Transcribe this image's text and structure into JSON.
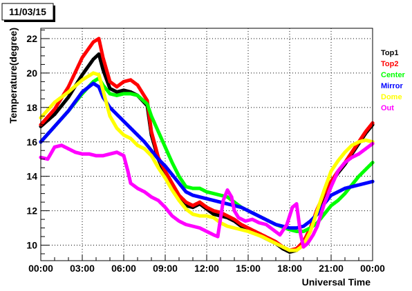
{
  "chart_data": {
    "type": "scatter",
    "title": "11/03/15",
    "xlabel": "Universal Time",
    "ylabel": "Temperature(degree)",
    "x_ticks": [
      "00:00",
      "03:00",
      "06:00",
      "09:00",
      "12:00",
      "15:00",
      "18:00",
      "21:00",
      "00:00"
    ],
    "y_ticks": [
      10,
      12,
      14,
      16,
      18,
      20,
      22
    ],
    "xlim": [
      0,
      24
    ],
    "ylim": [
      9.1,
      22.6
    ],
    "grid": true,
    "legend_position": "right",
    "series": [
      {
        "name": "Top1",
        "color": "#000000",
        "points": [
          [
            0,
            16.9
          ],
          [
            1,
            17.6
          ],
          [
            2,
            18.6
          ],
          [
            3,
            19.9
          ],
          [
            3.8,
            20.8
          ],
          [
            4.2,
            21.1
          ],
          [
            4.5,
            20.2
          ],
          [
            5,
            19.1
          ],
          [
            5.5,
            18.9
          ],
          [
            6,
            19.0
          ],
          [
            6.5,
            18.9
          ],
          [
            7,
            18.7
          ],
          [
            7.7,
            18.1
          ],
          [
            8,
            16.4
          ],
          [
            8.5,
            15.0
          ],
          [
            9,
            14.1
          ],
          [
            9.5,
            13.3
          ],
          [
            10,
            12.7
          ],
          [
            10.5,
            12.3
          ],
          [
            11,
            12.2
          ],
          [
            11.5,
            12.4
          ],
          [
            12,
            12.1
          ],
          [
            12.5,
            11.8
          ],
          [
            13,
            11.7
          ],
          [
            13.5,
            11.6
          ],
          [
            14,
            11.4
          ],
          [
            14.5,
            11.1
          ],
          [
            15,
            10.9
          ],
          [
            16,
            10.5
          ],
          [
            17,
            10.1
          ],
          [
            17.5,
            9.8
          ],
          [
            18,
            9.6
          ],
          [
            18.5,
            9.7
          ],
          [
            19,
            10.1
          ],
          [
            19.5,
            10.9
          ],
          [
            20,
            12.0
          ],
          [
            20.5,
            12.9
          ],
          [
            21,
            13.6
          ],
          [
            21.5,
            14.2
          ],
          [
            22,
            14.7
          ],
          [
            22.5,
            15.3
          ],
          [
            23,
            15.9
          ],
          [
            23.5,
            16.5
          ],
          [
            24,
            17.0
          ]
        ]
      },
      {
        "name": "Top2",
        "color": "#ff0000",
        "points": [
          [
            0,
            17.0
          ],
          [
            1,
            17.9
          ],
          [
            2,
            19.2
          ],
          [
            3,
            20.9
          ],
          [
            3.8,
            21.8
          ],
          [
            4.2,
            22.0
          ],
          [
            4.5,
            20.9
          ],
          [
            5,
            19.5
          ],
          [
            5.5,
            19.2
          ],
          [
            6,
            19.5
          ],
          [
            6.5,
            19.6
          ],
          [
            7,
            19.3
          ],
          [
            7.7,
            18.4
          ],
          [
            8,
            16.6
          ],
          [
            8.5,
            15.1
          ],
          [
            9,
            14.3
          ],
          [
            9.5,
            13.6
          ],
          [
            10,
            12.9
          ],
          [
            10.5,
            12.5
          ],
          [
            11,
            12.3
          ],
          [
            11.5,
            12.5
          ],
          [
            12,
            12.2
          ],
          [
            12.5,
            12.0
          ],
          [
            13,
            11.9
          ],
          [
            13.5,
            11.7
          ],
          [
            14,
            11.5
          ],
          [
            14.5,
            11.2
          ],
          [
            15,
            11.0
          ],
          [
            16,
            10.6
          ],
          [
            17,
            10.2
          ],
          [
            17.5,
            9.9
          ],
          [
            18,
            9.7
          ],
          [
            18.5,
            9.8
          ],
          [
            19,
            10.2
          ],
          [
            19.5,
            11.0
          ],
          [
            20,
            12.1
          ],
          [
            20.5,
            13.0
          ],
          [
            21,
            13.7
          ],
          [
            21.5,
            14.3
          ],
          [
            22,
            14.8
          ],
          [
            22.5,
            15.4
          ],
          [
            23,
            16.0
          ],
          [
            23.5,
            16.6
          ],
          [
            24,
            17.1
          ]
        ]
      },
      {
        "name": "Center",
        "color": "#00ff00",
        "points": [
          [
            0,
            16.0
          ],
          [
            1,
            16.9
          ],
          [
            2,
            17.8
          ],
          [
            3,
            18.8
          ],
          [
            3.8,
            19.5
          ],
          [
            4.2,
            19.7
          ],
          [
            4.5,
            19.3
          ],
          [
            5,
            18.8
          ],
          [
            5.5,
            18.7
          ],
          [
            6,
            18.8
          ],
          [
            6.5,
            18.8
          ],
          [
            7,
            18.7
          ],
          [
            7.7,
            18.2
          ],
          [
            8,
            17.5
          ],
          [
            8.5,
            16.6
          ],
          [
            9,
            15.7
          ],
          [
            9.5,
            14.8
          ],
          [
            10,
            14.0
          ],
          [
            10.5,
            13.4
          ],
          [
            11,
            13.3
          ],
          [
            11.5,
            13.3
          ],
          [
            12,
            13.1
          ],
          [
            12.5,
            13.0
          ],
          [
            13,
            12.9
          ],
          [
            13.5,
            12.8
          ],
          [
            14,
            12.5
          ],
          [
            14.5,
            12.2
          ],
          [
            15,
            12.0
          ],
          [
            16,
            11.6
          ],
          [
            17,
            11.2
          ],
          [
            18,
            10.9
          ],
          [
            18.5,
            10.8
          ],
          [
            19,
            10.8
          ],
          [
            19.5,
            11.0
          ],
          [
            20,
            11.3
          ],
          [
            20.5,
            11.8
          ],
          [
            21,
            12.3
          ],
          [
            21.5,
            12.6
          ],
          [
            22,
            13.0
          ],
          [
            22.5,
            13.5
          ],
          [
            23,
            14.0
          ],
          [
            23.5,
            14.4
          ],
          [
            24,
            14.8
          ]
        ]
      },
      {
        "name": "Mirror",
        "color": "#0000ff",
        "points": [
          [
            0,
            16.0
          ],
          [
            1,
            16.9
          ],
          [
            2,
            17.8
          ],
          [
            3,
            18.9
          ],
          [
            3.8,
            19.4
          ],
          [
            4.2,
            19.2
          ],
          [
            4.5,
            18.6
          ],
          [
            5,
            18.0
          ],
          [
            5.5,
            17.6
          ],
          [
            6,
            17.2
          ],
          [
            6.5,
            16.8
          ],
          [
            7,
            16.4
          ],
          [
            7.5,
            16.0
          ],
          [
            8,
            15.5
          ],
          [
            8.5,
            15.0
          ],
          [
            9,
            14.6
          ],
          [
            9.5,
            14.1
          ],
          [
            10,
            13.6
          ],
          [
            10.5,
            13.1
          ],
          [
            11,
            12.9
          ],
          [
            11.5,
            12.8
          ],
          [
            12,
            12.7
          ],
          [
            12.5,
            12.6
          ],
          [
            13,
            12.5
          ],
          [
            13.5,
            12.4
          ],
          [
            14,
            12.3
          ],
          [
            14.5,
            12.2
          ],
          [
            15,
            12.0
          ],
          [
            15.5,
            11.8
          ],
          [
            16,
            11.6
          ],
          [
            16.5,
            11.4
          ],
          [
            17,
            11.2
          ],
          [
            17.5,
            11.1
          ],
          [
            18,
            11.0
          ],
          [
            18.5,
            11.0
          ],
          [
            19,
            11.1
          ],
          [
            19.5,
            11.4
          ],
          [
            20,
            11.8
          ],
          [
            20.5,
            12.4
          ],
          [
            21,
            12.9
          ],
          [
            21.5,
            13.1
          ],
          [
            22,
            13.3
          ],
          [
            22.5,
            13.4
          ],
          [
            23,
            13.5
          ],
          [
            23.5,
            13.6
          ],
          [
            24,
            13.7
          ]
        ]
      },
      {
        "name": "Dome",
        "color": "#ffff00",
        "points": [
          [
            0,
            17.4
          ],
          [
            1,
            18.3
          ],
          [
            2,
            18.9
          ],
          [
            3,
            19.6
          ],
          [
            3.8,
            20.0
          ],
          [
            4.2,
            19.9
          ],
          [
            4.5,
            19.0
          ],
          [
            5,
            17.5
          ],
          [
            5.5,
            16.8
          ],
          [
            6,
            16.4
          ],
          [
            6.5,
            16.2
          ],
          [
            7,
            15.8
          ],
          [
            7.5,
            15.6
          ],
          [
            8,
            15.2
          ],
          [
            8.5,
            14.5
          ],
          [
            9,
            13.9
          ],
          [
            9.5,
            13.2
          ],
          [
            10,
            12.6
          ],
          [
            10.5,
            12.1
          ],
          [
            11,
            11.8
          ],
          [
            11.5,
            11.7
          ],
          [
            12,
            11.7
          ],
          [
            12.5,
            11.6
          ],
          [
            13,
            11.3
          ],
          [
            13.5,
            11.1
          ],
          [
            14,
            11.0
          ],
          [
            14.5,
            10.9
          ],
          [
            15,
            10.8
          ],
          [
            16,
            10.5
          ],
          [
            17,
            10.1
          ],
          [
            18,
            9.7
          ],
          [
            18.5,
            9.7
          ],
          [
            19,
            10.0
          ],
          [
            19.5,
            10.8
          ],
          [
            20,
            12.0
          ],
          [
            20.5,
            13.2
          ],
          [
            21,
            14.3
          ],
          [
            21.5,
            14.9
          ],
          [
            22,
            15.4
          ],
          [
            22.5,
            15.8
          ],
          [
            23,
            16.0
          ],
          [
            23.5,
            16.1
          ],
          [
            24,
            16.0
          ]
        ]
      },
      {
        "name": "Out",
        "color": "#ff00ff",
        "points": [
          [
            0,
            15.1
          ],
          [
            0.5,
            15.0
          ],
          [
            1,
            15.7
          ],
          [
            1.5,
            15.8
          ],
          [
            2,
            15.6
          ],
          [
            2.5,
            15.4
          ],
          [
            3,
            15.3
          ],
          [
            3.5,
            15.3
          ],
          [
            4,
            15.2
          ],
          [
            4.5,
            15.2
          ],
          [
            5,
            15.3
          ],
          [
            5.5,
            15.4
          ],
          [
            6,
            15.2
          ],
          [
            6.3,
            14.3
          ],
          [
            6.5,
            13.6
          ],
          [
            7,
            13.3
          ],
          [
            7.5,
            13.1
          ],
          [
            8,
            12.8
          ],
          [
            8.5,
            12.6
          ],
          [
            9,
            12.2
          ],
          [
            9.5,
            11.7
          ],
          [
            10,
            11.4
          ],
          [
            10.5,
            11.2
          ],
          [
            11,
            11.1
          ],
          [
            11.5,
            11.0
          ],
          [
            12,
            10.8
          ],
          [
            12.5,
            10.6
          ],
          [
            12.8,
            10.5
          ],
          [
            13.2,
            12.6
          ],
          [
            13.5,
            13.2
          ],
          [
            13.8,
            12.8
          ],
          [
            14,
            12.0
          ],
          [
            14.3,
            11.6
          ],
          [
            14.8,
            11.4
          ],
          [
            15.3,
            11.5
          ],
          [
            15.8,
            11.3
          ],
          [
            16.3,
            11.2
          ],
          [
            16.8,
            10.9
          ],
          [
            17.3,
            10.6
          ],
          [
            17.8,
            11.2
          ],
          [
            18.2,
            12.2
          ],
          [
            18.5,
            12.4
          ],
          [
            18.8,
            10.6
          ],
          [
            19,
            9.9
          ],
          [
            19.3,
            10.1
          ],
          [
            19.7,
            10.6
          ],
          [
            20,
            11.1
          ],
          [
            20.5,
            12.4
          ],
          [
            21,
            13.4
          ],
          [
            21.5,
            14.3
          ],
          [
            22,
            14.8
          ],
          [
            22.5,
            15.1
          ],
          [
            23,
            15.3
          ],
          [
            23.5,
            15.6
          ],
          [
            24,
            15.9
          ]
        ]
      }
    ]
  }
}
